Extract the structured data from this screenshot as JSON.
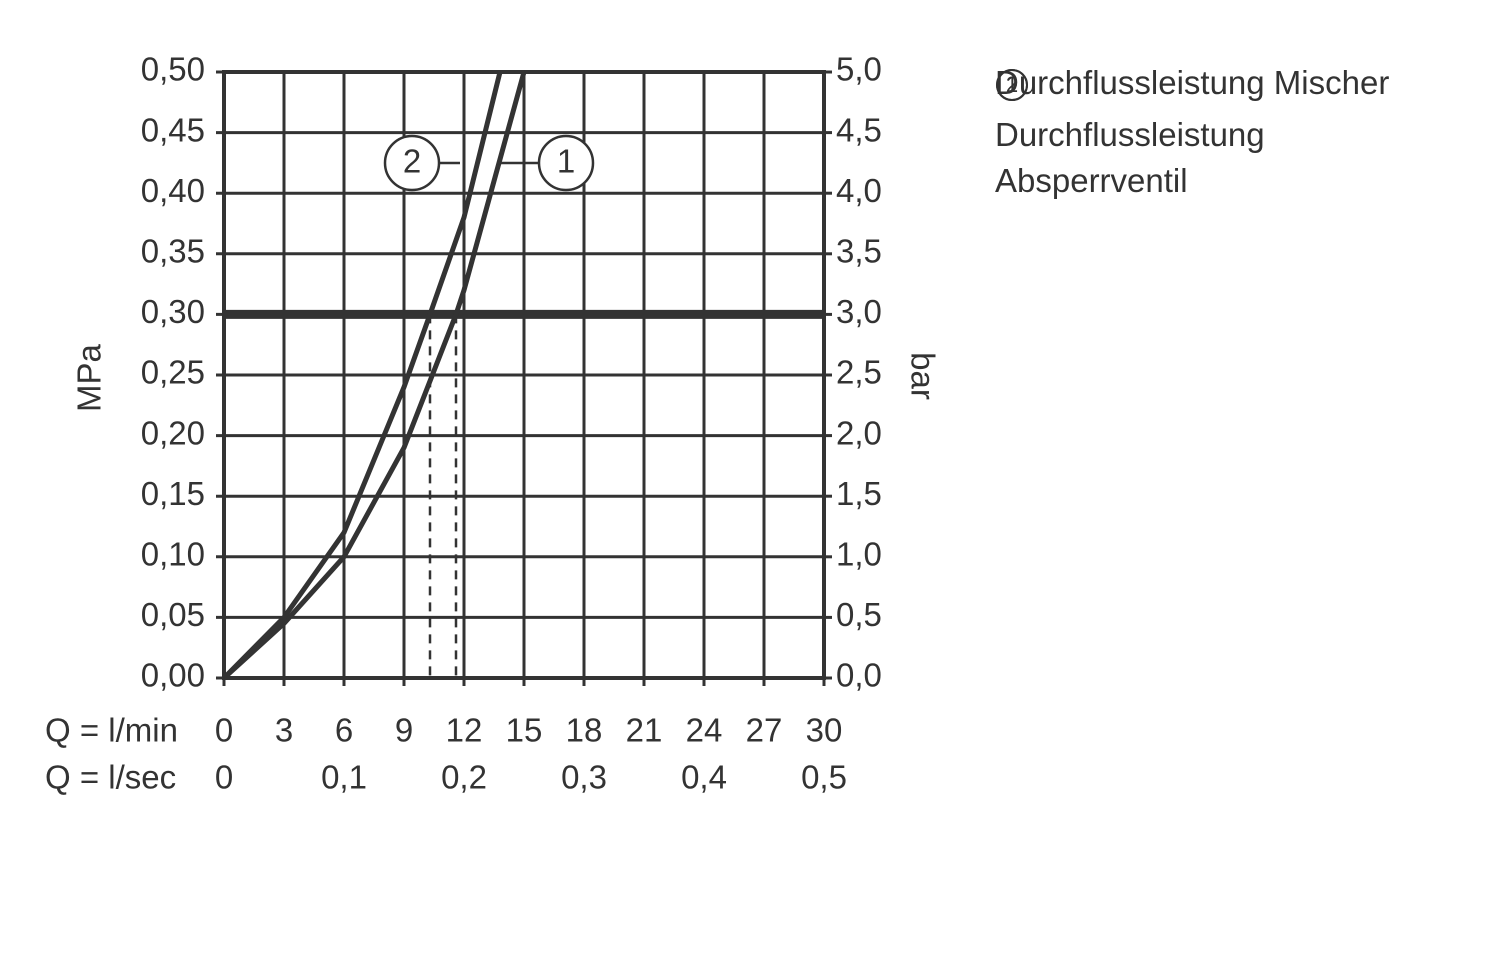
{
  "chart_data": {
    "type": "line",
    "y_label": "MPa",
    "y2_label": "bar",
    "x_label": "Q = l/min",
    "x2_label": "Q = l/sec",
    "xlim": [
      0,
      30
    ],
    "xticks": [
      0,
      3,
      6,
      9,
      12,
      15,
      18,
      21,
      24,
      27,
      30
    ],
    "x2lim": [
      0,
      0.5
    ],
    "x2ticks": [
      0,
      {
        "value": 0.1,
        "label": "0,1"
      },
      {
        "value": 0.2,
        "label": "0,2"
      },
      {
        "value": 0.3,
        "label": "0,3"
      },
      {
        "value": 0.4,
        "label": "0,4"
      },
      {
        "value": 0.5,
        "label": "0,5"
      }
    ],
    "ylim": [
      0,
      0.5
    ],
    "yticks": [
      {
        "value": 0,
        "label": "0,00"
      },
      {
        "value": 0.05,
        "label": "0,05"
      },
      {
        "value": 0.1,
        "label": "0,10"
      },
      {
        "value": 0.15,
        "label": "0,15"
      },
      {
        "value": 0.2,
        "label": "0,20"
      },
      {
        "value": 0.25,
        "label": "0,25"
      },
      {
        "value": 0.3,
        "label": "0,30"
      },
      {
        "value": 0.35,
        "label": "0,35"
      },
      {
        "value": 0.4,
        "label": "0,40"
      },
      {
        "value": 0.45,
        "label": "0,45"
      },
      {
        "value": 0.5,
        "label": "0,50"
      }
    ],
    "y2lim": [
      0,
      5
    ],
    "y2ticks": [
      {
        "value": 0,
        "label": "0,0"
      },
      {
        "value": 0.5,
        "label": "0,5"
      },
      {
        "value": 1,
        "label": "1,0"
      },
      {
        "value": 1.5,
        "label": "1,5"
      },
      {
        "value": 2,
        "label": "2,0"
      },
      {
        "value": 2.5,
        "label": "2,5"
      },
      {
        "value": 3,
        "label": "3,0"
      },
      {
        "value": 3.5,
        "label": "3,5"
      },
      {
        "value": 4,
        "label": "4,0"
      },
      {
        "value": 4.5,
        "label": "4,5"
      },
      {
        "value": 5,
        "label": "5,0"
      }
    ],
    "grid": true,
    "reference_y": 0.3,
    "drop_lines_x": [
      10.3,
      11.6
    ],
    "series": [
      {
        "name": "Durchflussleistung Mischer",
        "label": "1",
        "color": "#333333",
        "x": [
          0,
          3,
          6,
          9,
          11.6,
          12,
          13.5,
          15
        ],
        "values": [
          0,
          0.045,
          0.1,
          0.19,
          0.3,
          0.32,
          0.41,
          0.5
        ]
      },
      {
        "name": "Durchflussleistung Absperrventil",
        "label": "2",
        "color": "#333333",
        "x": [
          0,
          3,
          6,
          9,
          10.3,
          12,
          13.8
        ],
        "values": [
          0,
          0.05,
          0.12,
          0.24,
          0.3,
          0.38,
          0.5
        ]
      }
    ]
  }
}
